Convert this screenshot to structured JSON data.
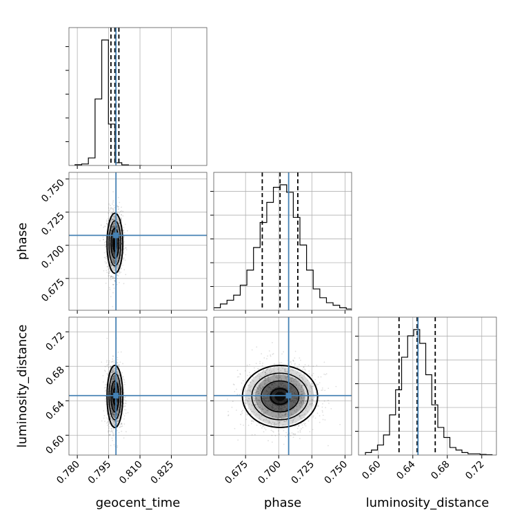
{
  "chart_data": {
    "type": "corner",
    "colors": {
      "truth": "#4682b4",
      "hist": "#000000",
      "quantile": "#000000",
      "grid": "#b0b0b0"
    },
    "parameters": [
      {
        "name": "geocent_time",
        "label": "geocent_time",
        "range": [
          0.776,
          0.842
        ],
        "ticks": [
          0.78,
          0.795,
          0.81,
          0.825
        ],
        "tick_labels": [
          "0.780",
          "0.795",
          "0.810",
          "0.825"
        ],
        "truth": 0.7985,
        "quantiles": [
          0.7961,
          0.798,
          0.7999
        ]
      },
      {
        "name": "phase",
        "label": "phase",
        "range": [
          0.651,
          0.755
        ],
        "ticks": [
          0.675,
          0.7,
          0.725,
          0.75
        ],
        "tick_labels": [
          "0.675",
          "0.700",
          "0.725",
          "0.750"
        ],
        "truth": 0.7075,
        "quantiles": [
          0.6876,
          0.701,
          0.7144
        ]
      },
      {
        "name": "luminosity_distance",
        "label": "luminosity_distance",
        "range": [
          0.577,
          0.737
        ],
        "ticks": [
          0.6,
          0.64,
          0.68,
          0.72
        ],
        "tick_labels": [
          "0.60",
          "0.64",
          "0.68",
          "0.72"
        ],
        "truth": 0.646,
        "quantiles": [
          0.624,
          0.645,
          0.666
        ]
      }
    ],
    "histograms": [
      {
        "param": "geocent_time",
        "edges": [
          0.7789,
          0.7821,
          0.7853,
          0.7885,
          0.7917,
          0.7949,
          0.7981,
          0.8013,
          0.8045,
          0.8077,
          0.8109
        ],
        "counts": [
          0.006,
          0.012,
          0.06,
          0.53,
          1.0,
          0.33,
          0.022,
          0.005,
          0,
          0
        ]
      },
      {
        "param": "phase",
        "edges": [
          0.651,
          0.656,
          0.661,
          0.666,
          0.671,
          0.676,
          0.681,
          0.686,
          0.691,
          0.696,
          0.701,
          0.706,
          0.711,
          0.716,
          0.721,
          0.726,
          0.731,
          0.736,
          0.741,
          0.746,
          0.751,
          0.755
        ],
        "counts": [
          0.02,
          0.05,
          0.08,
          0.12,
          0.2,
          0.32,
          0.5,
          0.7,
          0.86,
          0.98,
          1.0,
          0.94,
          0.74,
          0.52,
          0.32,
          0.17,
          0.1,
          0.06,
          0.04,
          0.02,
          0.01
        ]
      },
      {
        "param": "luminosity_distance",
        "edges": [
          0.585,
          0.592,
          0.599,
          0.606,
          0.613,
          0.62,
          0.627,
          0.634,
          0.641,
          0.648,
          0.655,
          0.662,
          0.669,
          0.676,
          0.683,
          0.69,
          0.697,
          0.704,
          0.711,
          0.718,
          0.725,
          0.732
        ],
        "counts": [
          0.02,
          0.04,
          0.08,
          0.16,
          0.32,
          0.52,
          0.78,
          0.95,
          1.0,
          0.89,
          0.64,
          0.4,
          0.22,
          0.14,
          0.06,
          0.04,
          0.02,
          0.01,
          0.01,
          0.005,
          0.003
        ]
      }
    ],
    "pairs": [
      {
        "x": "geocent_time",
        "y": "phase",
        "center": [
          0.798,
          0.7015
        ],
        "sd": [
          0.0018,
          0.0113
        ]
      },
      {
        "x": "geocent_time",
        "y": "luminosity_distance",
        "center": [
          0.798,
          0.645
        ],
        "sd": [
          0.0018,
          0.018
        ]
      },
      {
        "x": "phase",
        "y": "luminosity_distance",
        "center": [
          0.701,
          0.645
        ],
        "sd": [
          0.0135,
          0.018
        ]
      }
    ],
    "contour_levels_sigma": [
      0.5,
      1.0,
      1.5,
      2.0
    ],
    "grid": true
  }
}
